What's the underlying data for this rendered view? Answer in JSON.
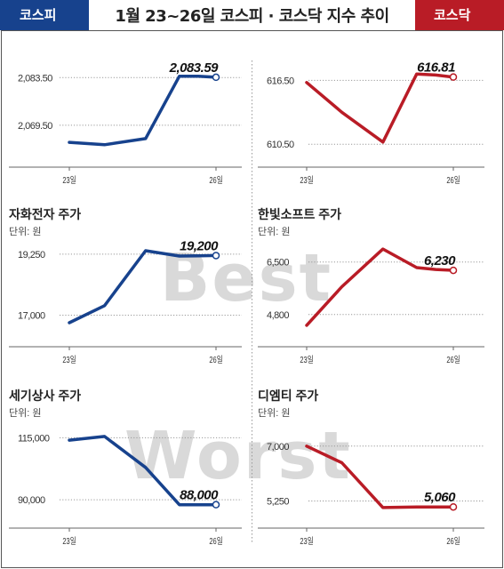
{
  "header": {
    "kospi_label": "코스피",
    "kosdaq_label": "코스닥",
    "title": "1월 23~26일  코스피 · 코스닥 지수 추이"
  },
  "watermark": {
    "best": "Best",
    "worst": "Worst"
  },
  "colors": {
    "kospi": "#17428d",
    "kosdaq": "#b91c26",
    "grid": "#999999",
    "frame": "#555555"
  },
  "chart_data": [
    {
      "type": "line",
      "group": "kospi",
      "title": "",
      "unit": "",
      "x": [
        "23일",
        "",
        "",
        "",
        "",
        "26일"
      ],
      "values": [
        2064.5,
        2063.8,
        2065.6,
        2083.9,
        2083.9,
        2083.59
      ],
      "yticks": [
        2069.5,
        2083.5
      ],
      "ytick_labels": [
        "2,069.50",
        "2,083.50"
      ],
      "last_label": "2,083.59",
      "ylim": [
        2058,
        2088
      ]
    },
    {
      "type": "line",
      "group": "kosdaq",
      "title": "",
      "unit": "",
      "x": [
        "23일",
        "",
        "",
        "",
        "",
        "26일"
      ],
      "values": [
        616.3,
        613.5,
        610.7,
        617.1,
        617.0,
        616.81
      ],
      "yticks": [
        610.5,
        616.5
      ],
      "ytick_labels": [
        "610.50",
        "616.50"
      ],
      "last_label": "616.81",
      "ylim": [
        608.6,
        618.2
      ]
    },
    {
      "type": "line",
      "group": "kospi",
      "title": "자화전자 주가",
      "unit": "단위: 원",
      "x": [
        "23일",
        "",
        "",
        "",
        "",
        "26일"
      ],
      "values": [
        16720,
        17350,
        19380,
        19180,
        19190,
        19200
      ],
      "yticks": [
        17000,
        19250
      ],
      "ytick_labels": [
        "17,000",
        "19,250"
      ],
      "last_label": "19,200",
      "ylim": [
        16000,
        20100
      ]
    },
    {
      "type": "line",
      "group": "kosdaq",
      "title": "한빛소프트 주가",
      "unit": "단위: 원",
      "x": [
        "23일",
        "",
        "",
        "",
        "",
        "26일"
      ],
      "values": [
        4450,
        5700,
        6920,
        6320,
        6260,
        6230
      ],
      "yticks": [
        4800,
        6500
      ],
      "ytick_labels": [
        "4,800",
        "6,500"
      ],
      "last_label": "6,230",
      "ylim": [
        3900,
        7500
      ]
    },
    {
      "type": "line",
      "group": "kospi",
      "title": "세기상사 주가",
      "unit": "단위: 원",
      "x": [
        "23일",
        "",
        "",
        "",
        "",
        "26일"
      ],
      "values": [
        114000,
        115500,
        103000,
        88000,
        88000,
        88000
      ],
      "yticks": [
        90000,
        115000
      ],
      "ytick_labels": [
        "90,000",
        "115,000"
      ],
      "last_label": "88,000",
      "ylim": [
        80000,
        123000
      ]
    },
    {
      "type": "line",
      "group": "kosdaq",
      "title": "디엠티 주가",
      "unit": "단위: 원",
      "x": [
        "23일",
        "",
        "",
        "",
        "",
        "26일"
      ],
      "values": [
        7000,
        6470,
        5040,
        5060,
        5060,
        5060
      ],
      "yticks": [
        5250,
        7000
      ],
      "ytick_labels": [
        "5,250",
        "7,000"
      ],
      "last_label": "5,060",
      "ylim": [
        4500,
        7900
      ]
    }
  ]
}
